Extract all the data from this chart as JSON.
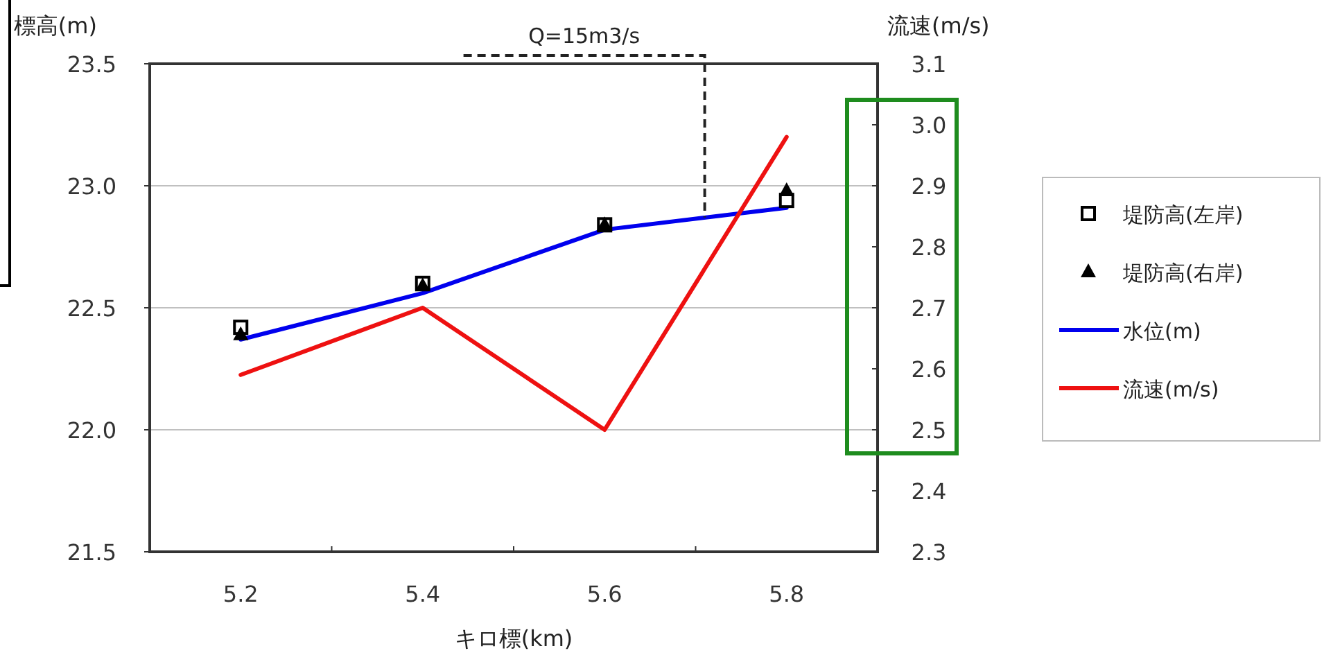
{
  "chart_data": {
    "type": "line",
    "xlabel": "キロ標(km)",
    "ylabel": "標高(m)",
    "y2label": "流速(m/s)",
    "x": [
      5.2,
      5.4,
      5.6,
      5.8
    ],
    "xlim": [
      5.1,
      5.9
    ],
    "xticks": [
      5.2,
      {
        "value": 5.3,
        "label": null
      },
      5.4,
      {
        "value": 5.5,
        "label": null
      },
      5.6,
      {
        "value": 5.7,
        "label": null
      },
      5.8
    ],
    "ylim": [
      21.5,
      23.5
    ],
    "yticks": [
      {
        "value": 21.5,
        "label": "21.5"
      },
      {
        "value": 22.0,
        "label": "22.0"
      },
      {
        "value": 22.5,
        "label": "22.5"
      },
      {
        "value": 23.0,
        "label": "23.0"
      },
      {
        "value": 23.5,
        "label": "23.5"
      }
    ],
    "y2lim": [
      2.3,
      3.1
    ],
    "y2ticks": [
      2.3,
      2.4,
      2.5,
      2.6,
      2.7,
      2.8,
      2.9,
      {
        "value": 3.0,
        "label": "3.0"
      },
      3.1
    ],
    "grid": "y",
    "legend": "right",
    "series": [
      {
        "name": "堤防高(左岸)",
        "type": "scatter",
        "marker": "square",
        "color": "#000000",
        "values": [
          22.42,
          22.6,
          22.84,
          22.94
        ]
      },
      {
        "name": "堤防高(右岸)",
        "type": "scatter",
        "marker": "triangle",
        "color": "#000000",
        "values": [
          22.39,
          22.59,
          22.84,
          22.98
        ]
      },
      {
        "name": "水位(m)",
        "color": "#0000ee",
        "values": [
          22.37,
          22.56,
          22.82,
          22.91
        ]
      },
      {
        "name": "流速(m/s)",
        "axis": "y2",
        "color": "#ee1111",
        "values": [
          2.59,
          2.7,
          2.5,
          2.98
        ]
      }
    ],
    "annotations": [
      {
        "text": "Q=15m3/s",
        "x": 5.71,
        "y": 22.87
      }
    ]
  }
}
